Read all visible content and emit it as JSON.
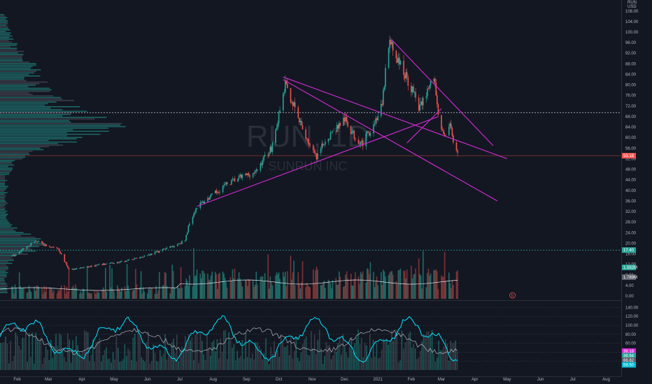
{
  "chart_data": {
    "type": "candlestick",
    "watermark": {
      "symbol": "RUN, 1D",
      "name": "SUNRUN INC"
    },
    "price_axis": {
      "unit_labels": [
        "RUN",
        "USD"
      ],
      "ticks": [
        "108.00",
        "104.00",
        "100.00",
        "96.00",
        "92.00",
        "88.00",
        "84.00",
        "80.00",
        "76.00",
        "72.00",
        "68.00",
        "64.00",
        "60.00",
        "56.00",
        "52.00",
        "48.00",
        "44.00",
        "40.00",
        "36.00",
        "32.00",
        "28.00",
        "24.00",
        "20.00",
        "16.00",
        "12.00",
        "8.00",
        "4.00",
        "0.00"
      ],
      "range": [
        0,
        110
      ]
    },
    "x_axis": {
      "ticks": [
        "Feb",
        "Mar",
        "Apr",
        "May",
        "Jun",
        "Jul",
        "Aug",
        "Sep",
        "Oct",
        "Nov",
        "Dec",
        "2021",
        "Feb",
        "Mar",
        "Apr",
        "May",
        "Jun",
        "Jul",
        "Aug"
      ]
    },
    "last_price_label": "53.18",
    "level_label": "17.40",
    "volume_labels": [
      "1.562M",
      "1.789M"
    ],
    "event_marker": "E",
    "oscillator": {
      "ticks": [
        "140.00",
        "120.00",
        "100.00",
        "80.00",
        "60.00",
        "40.00",
        "20.00"
      ],
      "range": [
        0,
        150
      ],
      "labels": [
        "38.18",
        "36.94",
        "66.82",
        "58.50"
      ]
    },
    "price_path": [
      {
        "date": "2020-01-27",
        "close": 15
      },
      {
        "date": "2020-02-18",
        "close": 21
      },
      {
        "date": "2020-02-28",
        "close": 19
      },
      {
        "date": "2020-03-10",
        "close": 18
      },
      {
        "date": "2020-03-20",
        "close": 10
      },
      {
        "date": "2020-04-06",
        "close": 11
      },
      {
        "date": "2020-04-20",
        "close": 12
      },
      {
        "date": "2020-05-10",
        "close": 13
      },
      {
        "date": "2020-06-05",
        "close": 16
      },
      {
        "date": "2020-06-25",
        "close": 19
      },
      {
        "date": "2020-07-06",
        "close": 21
      },
      {
        "date": "2020-07-10",
        "close": 28
      },
      {
        "date": "2020-07-17",
        "close": 34
      },
      {
        "date": "2020-07-31",
        "close": 38
      },
      {
        "date": "2020-08-12",
        "close": 42
      },
      {
        "date": "2020-08-26",
        "close": 45
      },
      {
        "date": "2020-09-10",
        "close": 47
      },
      {
        "date": "2020-09-18",
        "close": 53
      },
      {
        "date": "2020-09-24",
        "close": 56
      },
      {
        "date": "2020-10-02",
        "close": 70
      },
      {
        "date": "2020-10-07",
        "close": 80
      },
      {
        "date": "2020-10-14",
        "close": 73
      },
      {
        "date": "2020-10-21",
        "close": 65
      },
      {
        "date": "2020-10-30",
        "close": 57
      },
      {
        "date": "2020-11-05",
        "close": 52
      },
      {
        "date": "2020-11-13",
        "close": 59
      },
      {
        "date": "2020-11-24",
        "close": 64
      },
      {
        "date": "2020-12-01",
        "close": 67
      },
      {
        "date": "2020-12-11",
        "close": 60
      },
      {
        "date": "2020-12-18",
        "close": 58
      },
      {
        "date": "2020-12-29",
        "close": 66
      },
      {
        "date": "2021-01-05",
        "close": 72
      },
      {
        "date": "2021-01-08",
        "close": 85
      },
      {
        "date": "2021-01-12",
        "close": 96
      },
      {
        "date": "2021-01-19",
        "close": 90
      },
      {
        "date": "2021-01-26",
        "close": 84
      },
      {
        "date": "2021-02-02",
        "close": 78
      },
      {
        "date": "2021-02-09",
        "close": 71
      },
      {
        "date": "2021-02-16",
        "close": 78
      },
      {
        "date": "2021-02-22",
        "close": 83
      },
      {
        "date": "2021-02-26",
        "close": 70
      },
      {
        "date": "2021-03-03",
        "close": 60
      },
      {
        "date": "2021-03-09",
        "close": 66
      },
      {
        "date": "2021-03-12",
        "close": 57
      },
      {
        "date": "2021-03-16",
        "close": 53
      }
    ],
    "trendlines": [
      {
        "from": {
          "date": "2020-07-17",
          "price": 34
        },
        "to": {
          "date": "2021-02-26",
          "price": 68
        },
        "color": "#d52bd5"
      },
      {
        "from": {
          "date": "2020-10-05",
          "price": 83
        },
        "to": {
          "date": "2021-05-01",
          "price": 52
        },
        "color": "#d52bd5"
      },
      {
        "from": {
          "date": "2020-10-05",
          "price": 82
        },
        "to": {
          "date": "2021-04-22",
          "price": 36
        },
        "color": "#d52bd5"
      },
      {
        "from": {
          "date": "2021-01-14",
          "price": 97
        },
        "to": {
          "date": "2021-04-18",
          "price": 57
        },
        "color": "#d52bd5"
      },
      {
        "from": {
          "date": "2021-01-28",
          "price": 58
        },
        "to": {
          "date": "2021-03-01",
          "price": 71
        },
        "color": "#d52bd5"
      }
    ],
    "horizontal_levels": [
      {
        "price": 69.5,
        "style": "dotted",
        "color": "#b2b5be"
      },
      {
        "price": 53.18,
        "style": "solid",
        "color": "#8d3a2d"
      },
      {
        "price": 17.4,
        "style": "dotted",
        "color": "#26a69a"
      }
    ],
    "colors": {
      "background": "#131722",
      "up": "#26a69a",
      "down": "#ef5350",
      "trendline": "#d52bd5",
      "volume_profile": "#26a69a",
      "oscillator_primary": "#00e5ff",
      "oscillator_secondary": "#b2b5be"
    }
  }
}
